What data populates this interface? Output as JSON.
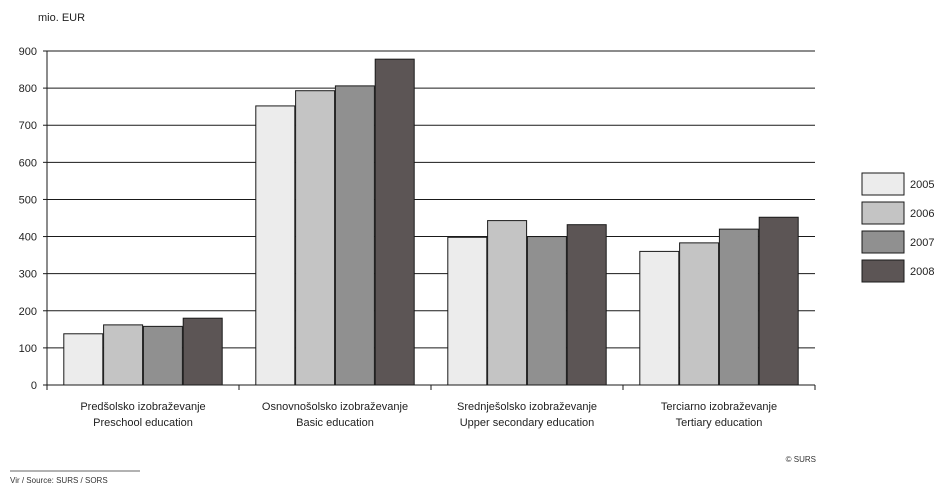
{
  "chart_data": {
    "type": "bar",
    "ylabel": "mio. EUR",
    "ylim": [
      0,
      900
    ],
    "yticks": [
      0,
      100,
      200,
      300,
      400,
      500,
      600,
      700,
      800,
      900
    ],
    "grid": true,
    "legend_position": "right",
    "categories": [
      {
        "line1": "Predšolsko izobraževanje",
        "line2": "Preschool education"
      },
      {
        "line1": "Osnovnošolsko izobraževanje",
        "line2": "Basic education"
      },
      {
        "line1": "Srednješolsko izobraževanje",
        "line2": "Upper secondary education"
      },
      {
        "line1": "Terciarno izobraževanje",
        "line2": "Tertiary education"
      }
    ],
    "series": [
      {
        "name": "2005",
        "color": "#ececec",
        "values": [
          138,
          752,
          398,
          360
        ]
      },
      {
        "name": "2006",
        "color": "#c4c4c4",
        "values": [
          162,
          793,
          443,
          383
        ]
      },
      {
        "name": "2007",
        "color": "#909090",
        "values": [
          158,
          806,
          400,
          420
        ]
      },
      {
        "name": "2008",
        "color": "#5c5555",
        "values": [
          180,
          878,
          432,
          452
        ]
      }
    ],
    "copyright": "© SURS",
    "source": "Vir / Source: SURS / SORS"
  }
}
